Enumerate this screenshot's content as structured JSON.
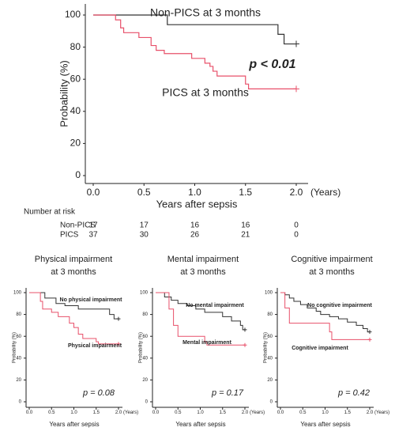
{
  "chart_data": [
    {
      "type": "step",
      "x_label": "Years after sepsis",
      "x_unit": "(Years)",
      "y_label": "Probability (%)",
      "p_value": "p < 0.01",
      "xlim": [
        0,
        2
      ],
      "ylim": [
        0,
        100
      ],
      "xticks": [
        {
          "value": 0,
          "label": "0.0"
        },
        {
          "value": 0.5,
          "label": "0.5"
        },
        {
          "value": 1,
          "label": "1.0"
        },
        {
          "value": 1.5,
          "label": "1.5"
        },
        {
          "value": 2,
          "label": "2.0"
        }
      ],
      "yticks": [
        0,
        20,
        40,
        60,
        80,
        100
      ],
      "series": [
        {
          "name": "Non-PICS at 3 months",
          "color": "#333333",
          "x": [
            0,
            0.73,
            1.82,
            1.88,
            2.0
          ],
          "values": [
            100,
            94,
            88,
            82,
            82
          ]
        },
        {
          "name": "PICS at 3 months",
          "color": "#e8506a",
          "x": [
            0,
            0.22,
            0.27,
            0.3,
            0.45,
            0.57,
            0.62,
            0.7,
            0.97,
            1.1,
            1.15,
            1.18,
            1.22,
            1.5,
            1.53,
            2.0
          ],
          "values": [
            100,
            97,
            92,
            89,
            86,
            81,
            78,
            76,
            73,
            70,
            68,
            65,
            62,
            57,
            54,
            54
          ]
        }
      ],
      "number_at_risk": {
        "title": "Number at risk",
        "rows": [
          {
            "name": "Non-PICS",
            "values": [
              17,
              17,
              16,
              16,
              0
            ]
          },
          {
            "name": "PICS",
            "values": [
              37,
              30,
              26,
              21,
              0
            ]
          }
        ]
      }
    },
    {
      "type": "step",
      "title": [
        "Physical impairment",
        "at 3 months"
      ],
      "x_label": "Years after sepsis",
      "x_unit": "(Years)",
      "y_label": "Probability (%)",
      "p_value": "p = 0.08",
      "xlim": [
        0,
        2
      ],
      "ylim": [
        0,
        100
      ],
      "xticks": [
        {
          "value": 0,
          "label": "0.0"
        },
        {
          "value": 0.5,
          "label": "0.5"
        },
        {
          "value": 1,
          "label": "1.0"
        },
        {
          "value": 1.5,
          "label": "1.5"
        },
        {
          "value": 2,
          "label": "2.0"
        }
      ],
      "yticks": [
        0,
        20,
        40,
        60,
        80,
        100
      ],
      "series": [
        {
          "name": "No physical impairment",
          "color": "#333333",
          "x": [
            0,
            0.35,
            0.6,
            0.8,
            1.1,
            1.8,
            1.9,
            2.0
          ],
          "values": [
            100,
            95,
            90,
            88,
            85,
            80,
            76,
            76
          ]
        },
        {
          "name": "Physical impairment",
          "color": "#e8506a",
          "x": [
            0,
            0.25,
            0.3,
            0.5,
            0.65,
            0.9,
            1.0,
            1.1,
            1.2,
            1.5,
            1.55,
            2.0
          ],
          "values": [
            100,
            92,
            85,
            82,
            78,
            72,
            68,
            62,
            58,
            55,
            53,
            53
          ]
        }
      ]
    },
    {
      "type": "step",
      "title": [
        "Mental impairment",
        "at 3 months"
      ],
      "x_label": "Years after sepsis",
      "x_unit": "(Years)",
      "y_label": "Probability (%)",
      "p_value": "p = 0.17",
      "xlim": [
        0,
        2
      ],
      "ylim": [
        0,
        100
      ],
      "xticks": [
        {
          "value": 0,
          "label": "0.0"
        },
        {
          "value": 0.5,
          "label": "0.5"
        },
        {
          "value": 1,
          "label": "1.0"
        },
        {
          "value": 1.5,
          "label": "1.5"
        },
        {
          "value": 2,
          "label": "2.0"
        }
      ],
      "yticks": [
        0,
        20,
        40,
        60,
        80,
        100
      ],
      "series": [
        {
          "name": "No mental impairment",
          "color": "#333333",
          "x": [
            0,
            0.2,
            0.35,
            0.5,
            0.7,
            0.9,
            1.1,
            1.5,
            1.7,
            1.9,
            1.95,
            2.0
          ],
          "values": [
            100,
            96,
            93,
            90,
            88,
            85,
            82,
            78,
            74,
            70,
            66,
            66
          ]
        },
        {
          "name": "Mental impairment",
          "color": "#e8506a",
          "x": [
            0,
            0.3,
            0.4,
            0.5,
            1.1,
            1.15,
            2.0
          ],
          "values": [
            100,
            85,
            70,
            60,
            55,
            52,
            52
          ]
        }
      ]
    },
    {
      "type": "step",
      "title": [
        "Cognitive impairment",
        "at 3 months"
      ],
      "x_label": "Years after sepsis",
      "x_unit": "(Years)",
      "y_label": "Probability (%)",
      "p_value": "p = 0.42",
      "xlim": [
        0,
        2
      ],
      "ylim": [
        0,
        100
      ],
      "xticks": [
        {
          "value": 0,
          "label": "0.0"
        },
        {
          "value": 0.5,
          "label": "0.5"
        },
        {
          "value": 1,
          "label": "1.0"
        },
        {
          "value": 1.5,
          "label": "1.5"
        },
        {
          "value": 2,
          "label": "2.0"
        }
      ],
      "yticks": [
        0,
        20,
        40,
        60,
        80,
        100
      ],
      "series": [
        {
          "name": "No cognitive impairment",
          "color": "#333333",
          "x": [
            0,
            0.1,
            0.2,
            0.3,
            0.45,
            0.6,
            0.8,
            0.9,
            1.1,
            1.3,
            1.5,
            1.7,
            1.85,
            1.95,
            2.0
          ],
          "values": [
            100,
            98,
            95,
            92,
            89,
            86,
            83,
            80,
            78,
            76,
            73,
            70,
            67,
            64,
            64
          ]
        },
        {
          "name": "Cognitive impairment",
          "color": "#e8506a",
          "x": [
            0,
            0.1,
            0.2,
            1.1,
            1.15,
            2.0
          ],
          "values": [
            100,
            86,
            72,
            64,
            57,
            57
          ]
        }
      ]
    }
  ]
}
